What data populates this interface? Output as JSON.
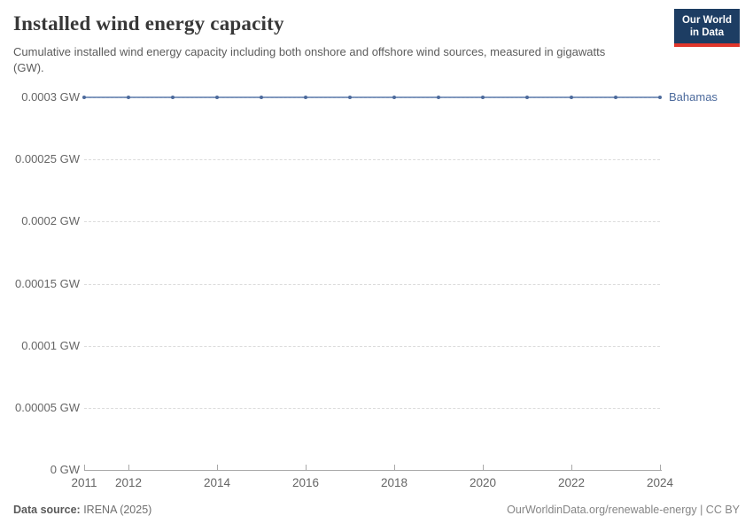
{
  "header": {
    "title": "Installed wind energy capacity",
    "subtitle": "Cumulative installed wind energy capacity including both onshore and offshore wind sources, measured in gigawatts (GW).",
    "logo": {
      "line1": "Our World",
      "line2": "in Data",
      "bg_color": "#1d3d63",
      "accent_color": "#e0362b"
    }
  },
  "chart_data": {
    "type": "line",
    "title": "Installed wind energy capacity",
    "unit": "GW",
    "x": [
      2011,
      2012,
      2013,
      2014,
      2015,
      2016,
      2017,
      2018,
      2019,
      2020,
      2021,
      2022,
      2023,
      2024
    ],
    "series": [
      {
        "name": "Bahamas",
        "color": "#4c6a9c",
        "line_color": "#5b7aab",
        "values": [
          0.0003,
          0.0003,
          0.0003,
          0.0003,
          0.0003,
          0.0003,
          0.0003,
          0.0003,
          0.0003,
          0.0003,
          0.0003,
          0.0003,
          0.0003,
          0.0003
        ]
      }
    ],
    "ylim": [
      0,
      0.0003
    ],
    "yticks": [
      0,
      5e-05,
      0.0001,
      0.00015,
      0.0002,
      0.00025,
      0.0003
    ],
    "ytick_labels": [
      "0 GW",
      "0.00005 GW",
      "0.0001 GW",
      "0.00015 GW",
      "0.0002 GW",
      "0.00025 GW",
      "0.0003 GW"
    ],
    "xticks": [
      2011,
      2012,
      2014,
      2016,
      2018,
      2020,
      2022,
      2024
    ],
    "xtick_labels": [
      "2011",
      "2012",
      "2014",
      "2016",
      "2018",
      "2020",
      "2022",
      "2024"
    ],
    "grid": "horizontal-dashed",
    "legend_position": "end-of-line"
  },
  "footer": {
    "source_label": "Data source:",
    "source_value": " IRENA (2025)",
    "credit": "OurWorldinData.org/renewable-energy | CC BY"
  }
}
